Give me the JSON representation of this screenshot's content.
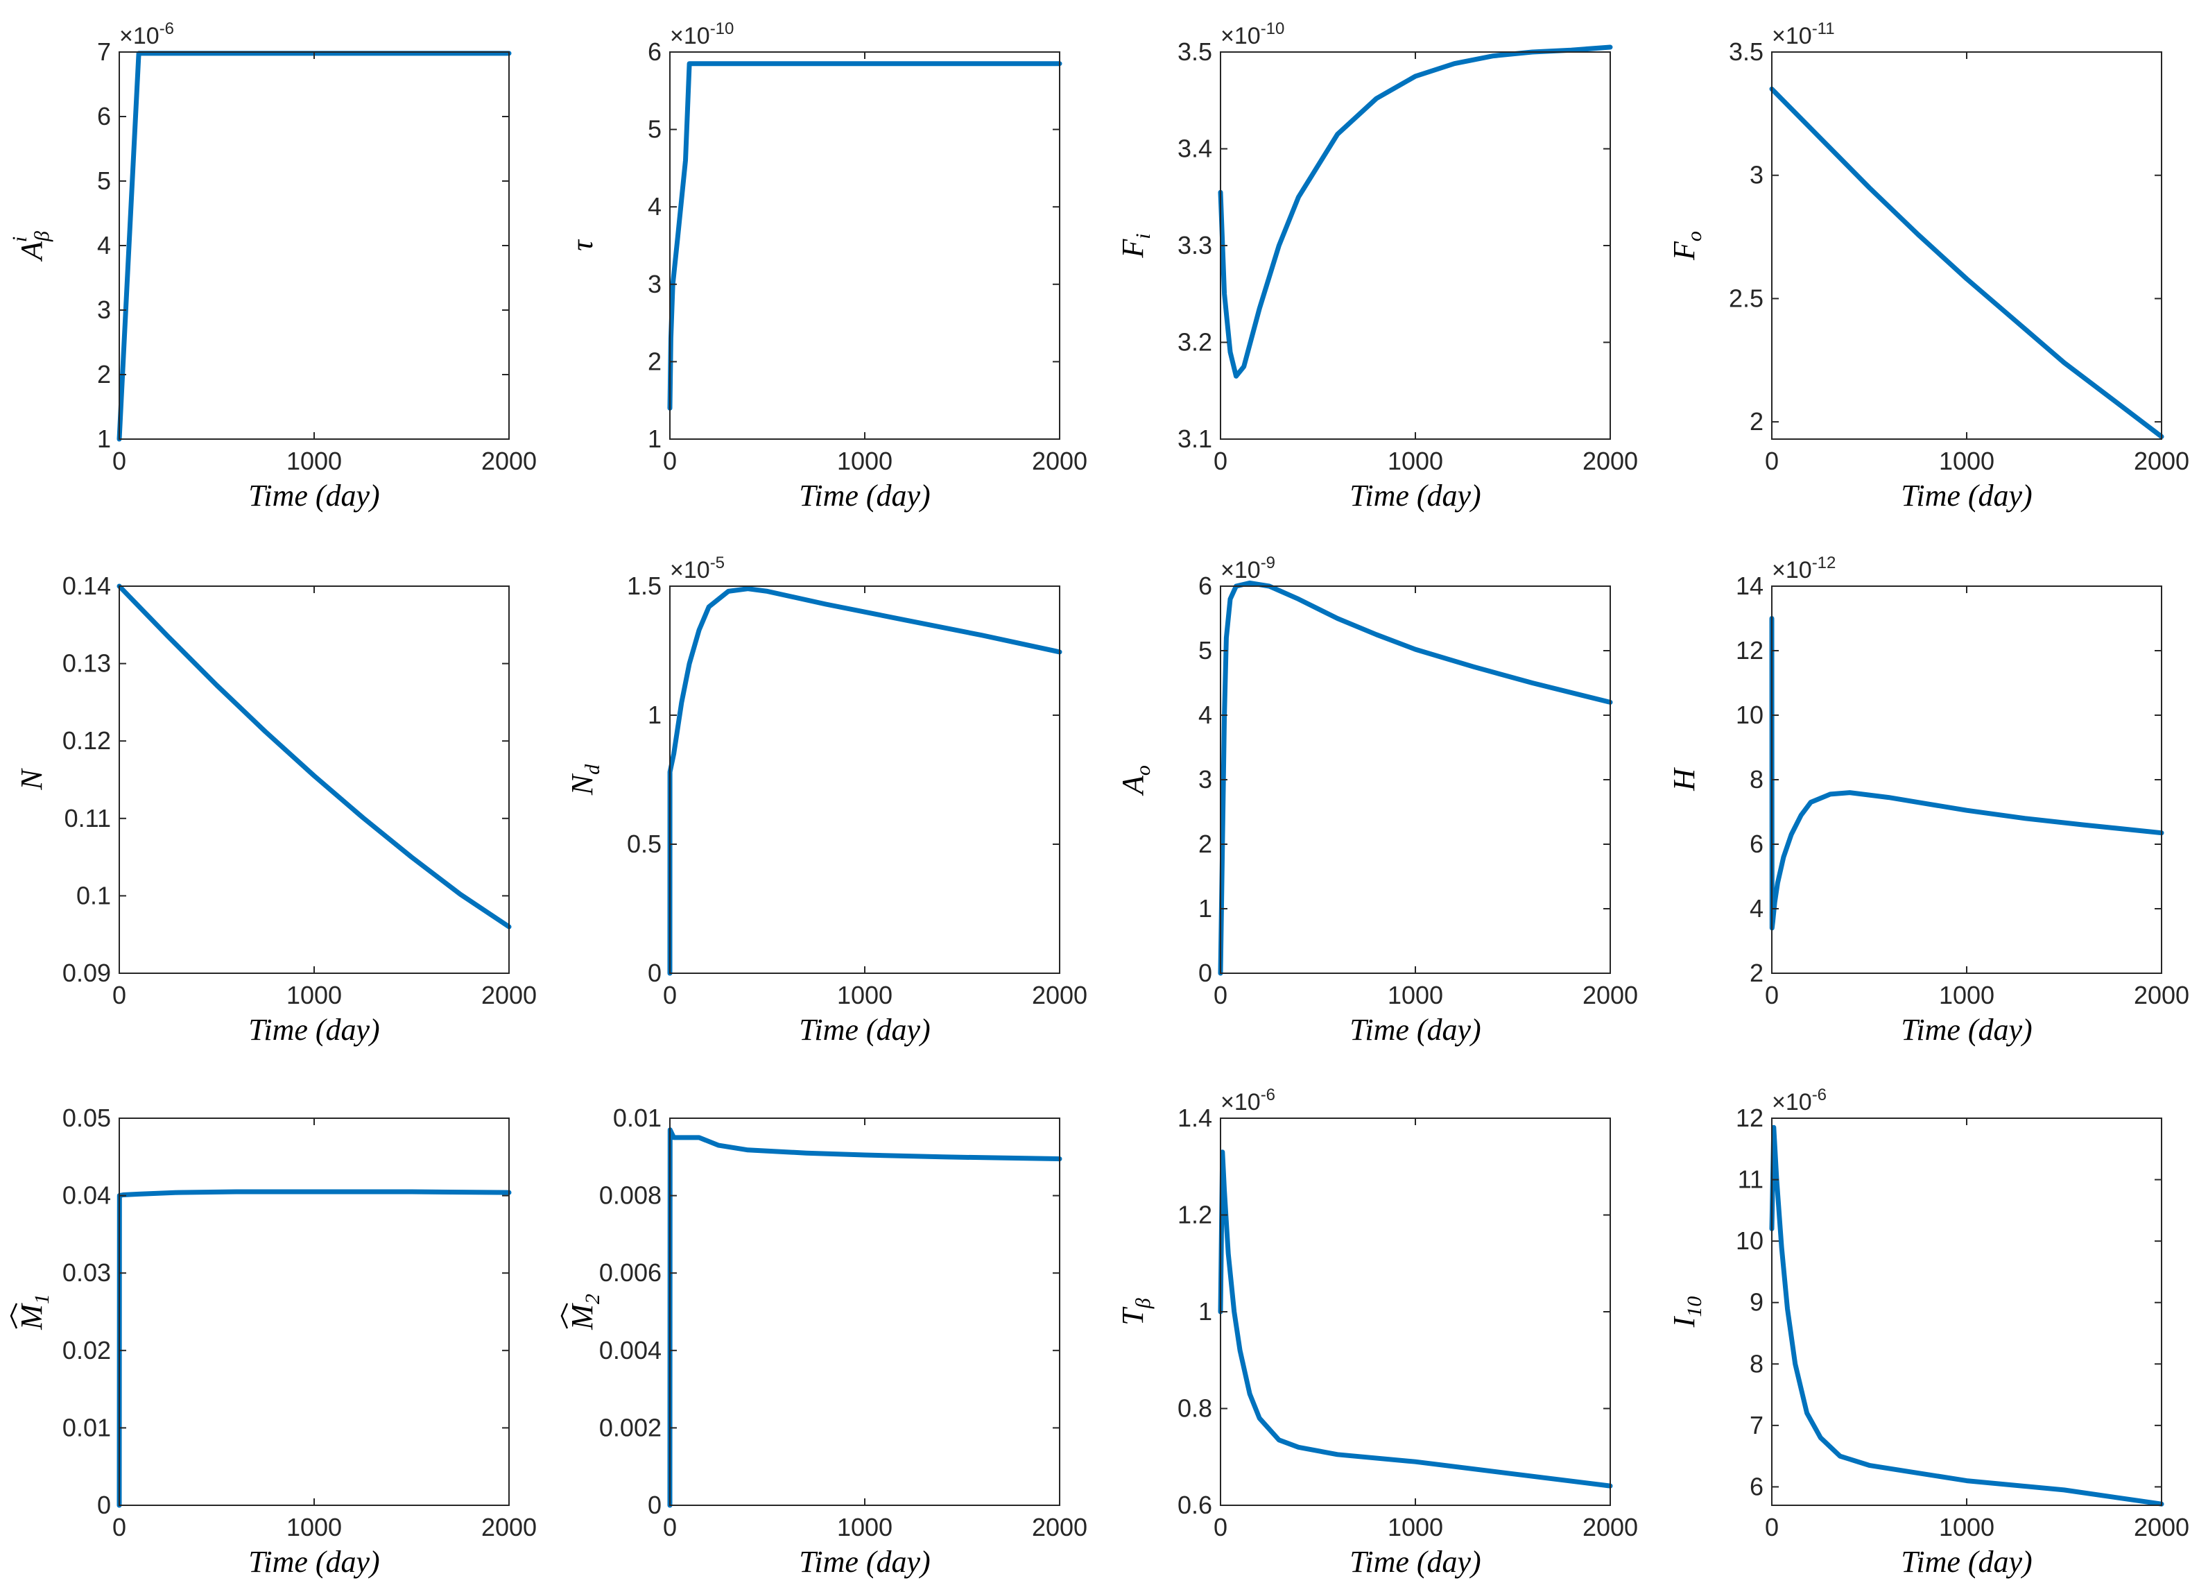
{
  "figure": {
    "line_color": "#0072BD",
    "axis_color": "#262626",
    "background": "#ffffff"
  },
  "chart_data": [
    {
      "type": "line",
      "xlabel": "Time (day)",
      "ylabel": {
        "main": "A",
        "sub": "β",
        "sup": "i"
      },
      "exponent": "-6",
      "xlim": [
        0,
        2000
      ],
      "ylim": [
        1,
        7
      ],
      "xticks": [
        0,
        1000,
        2000
      ],
      "yticks": [
        1,
        2,
        3,
        4,
        5,
        6,
        7
      ],
      "x": [
        0,
        40,
        100,
        2000
      ],
      "y": [
        1,
        3.4,
        6.98,
        6.98
      ]
    },
    {
      "type": "line",
      "xlabel": "Time (day)",
      "ylabel": {
        "main": "τ"
      },
      "exponent": "-10",
      "xlim": [
        0,
        2000
      ],
      "ylim": [
        1,
        6
      ],
      "xticks": [
        0,
        1000,
        2000
      ],
      "yticks": [
        1,
        2,
        3,
        4,
        5,
        6
      ],
      "x": [
        0,
        5,
        15,
        40,
        80,
        100,
        2000
      ],
      "y": [
        1.4,
        2.3,
        3.0,
        3.6,
        4.6,
        5.85,
        5.85
      ]
    },
    {
      "type": "line",
      "xlabel": "Time (day)",
      "ylabel": {
        "main": "F",
        "sub": "i"
      },
      "exponent": "-10",
      "xlim": [
        0,
        2000
      ],
      "ylim": [
        3.1,
        3.5
      ],
      "xticks": [
        0,
        1000,
        2000
      ],
      "yticks": [
        3.1,
        3.2,
        3.3,
        3.4,
        3.5
      ],
      "x": [
        0,
        20,
        50,
        80,
        120,
        200,
        300,
        400,
        600,
        800,
        1000,
        1200,
        1400,
        1600,
        1800,
        2000
      ],
      "y": [
        3.355,
        3.25,
        3.19,
        3.165,
        3.175,
        3.235,
        3.3,
        3.35,
        3.415,
        3.452,
        3.475,
        3.488,
        3.496,
        3.5,
        3.502,
        3.505
      ]
    },
    {
      "type": "line",
      "xlabel": "Time (day)",
      "ylabel": {
        "main": "F",
        "sub": "o"
      },
      "exponent": "-11",
      "xlim": [
        0,
        2000
      ],
      "ylim": [
        1.93,
        3.5
      ],
      "xticks": [
        0,
        1000,
        2000
      ],
      "yticks": [
        2,
        2.5,
        3,
        3.5
      ],
      "x": [
        0,
        250,
        500,
        750,
        1000,
        1250,
        1500,
        1750,
        2000
      ],
      "y": [
        3.35,
        3.15,
        2.95,
        2.76,
        2.58,
        2.41,
        2.24,
        2.09,
        1.94
      ]
    },
    {
      "type": "line",
      "xlabel": "Time (day)",
      "ylabel": {
        "main": "N"
      },
      "exponent": "",
      "xlim": [
        0,
        2000
      ],
      "ylim": [
        0.09,
        0.14
      ],
      "xticks": [
        0,
        1000,
        2000
      ],
      "yticks": [
        0.09,
        0.1,
        0.11,
        0.12,
        0.13,
        0.14
      ],
      "ytick_labels": [
        "0.09",
        "0.1",
        "0.11",
        "0.12",
        "0.13",
        "0.14"
      ],
      "x": [
        0,
        250,
        500,
        750,
        1000,
        1250,
        1500,
        1750,
        2000
      ],
      "y": [
        0.14,
        0.1335,
        0.1272,
        0.1212,
        0.1155,
        0.1101,
        0.105,
        0.1002,
        0.096
      ]
    },
    {
      "type": "line",
      "xlabel": "Time (day)",
      "ylabel": {
        "main": "N",
        "sub": "d"
      },
      "exponent": "-5",
      "xlim": [
        0,
        2000
      ],
      "ylim": [
        0,
        1.5
      ],
      "xticks": [
        0,
        1000,
        2000
      ],
      "yticks": [
        0,
        0.5,
        1,
        1.5
      ],
      "x": [
        0,
        0.5,
        20,
        60,
        100,
        150,
        200,
        300,
        400,
        500,
        800,
        1200,
        1600,
        2000
      ],
      "y": [
        0,
        0.78,
        0.85,
        1.05,
        1.2,
        1.33,
        1.42,
        1.48,
        1.49,
        1.48,
        1.43,
        1.37,
        1.31,
        1.245
      ]
    },
    {
      "type": "line",
      "xlabel": "Time (day)",
      "ylabel": {
        "main": "A",
        "sub": "o"
      },
      "exponent": "-9",
      "xlim": [
        0,
        2000
      ],
      "ylim": [
        0,
        6
      ],
      "xticks": [
        0,
        1000,
        2000
      ],
      "yticks": [
        0,
        1,
        2,
        3,
        4,
        5,
        6
      ],
      "x": [
        0,
        10,
        20,
        30,
        50,
        80,
        150,
        250,
        400,
        600,
        800,
        1000,
        1300,
        1600,
        2000
      ],
      "y": [
        0,
        2.0,
        4.0,
        5.2,
        5.8,
        6.0,
        6.05,
        6.0,
        5.8,
        5.5,
        5.25,
        5.02,
        4.75,
        4.5,
        4.2
      ]
    },
    {
      "type": "line",
      "xlabel": "Time (day)",
      "ylabel": {
        "main": "H"
      },
      "exponent": "-12",
      "xlim": [
        0,
        2000
      ],
      "ylim": [
        2,
        14
      ],
      "xticks": [
        0,
        1000,
        2000
      ],
      "yticks": [
        2,
        4,
        6,
        8,
        10,
        12,
        14
      ],
      "x": [
        0,
        1,
        5,
        15,
        30,
        60,
        100,
        150,
        200,
        300,
        400,
        600,
        800,
        1000,
        1300,
        1600,
        2000
      ],
      "y": [
        13,
        3.4,
        3.6,
        4.2,
        4.8,
        5.6,
        6.3,
        6.9,
        7.3,
        7.55,
        7.6,
        7.45,
        7.25,
        7.05,
        6.8,
        6.6,
        6.35
      ]
    },
    {
      "type": "line",
      "xlabel": "Time (day)",
      "ylabel": {
        "main": "M",
        "sub": "1",
        "hat": true
      },
      "exponent": "",
      "xlim": [
        0,
        2000
      ],
      "ylim": [
        0,
        0.05
      ],
      "xticks": [
        0,
        1000,
        2000
      ],
      "yticks": [
        0,
        0.01,
        0.02,
        0.03,
        0.04,
        0.05
      ],
      "ytick_labels": [
        "0",
        "0.01",
        "0.02",
        "0.03",
        "0.04",
        "0.05"
      ],
      "x": [
        0,
        1,
        20,
        100,
        300,
        600,
        1000,
        1500,
        2000
      ],
      "y": [
        0,
        0.04,
        0.0401,
        0.0402,
        0.0404,
        0.0405,
        0.0405,
        0.0405,
        0.0404
      ]
    },
    {
      "type": "line",
      "xlabel": "Time (day)",
      "ylabel": {
        "main": "M",
        "sub": "2",
        "hat": true
      },
      "exponent": "",
      "xlim": [
        0,
        2000
      ],
      "ylim": [
        0,
        0.01
      ],
      "xticks": [
        0,
        1000,
        2000
      ],
      "yticks": [
        0,
        0.002,
        0.004,
        0.006,
        0.008,
        0.01
      ],
      "ytick_labels": [
        "0",
        "0.002",
        "0.004",
        "0.006",
        "0.008",
        "0.01"
      ],
      "x": [
        0,
        1,
        20,
        80,
        150,
        250,
        400,
        700,
        1000,
        1400,
        2000
      ],
      "y": [
        0,
        0.0097,
        0.0095,
        0.0095,
        0.0095,
        0.0093,
        0.00918,
        0.0091,
        0.00905,
        0.009,
        0.00895
      ]
    },
    {
      "type": "line",
      "xlabel": "Time (day)",
      "ylabel": {
        "main": "T",
        "sub": "β"
      },
      "exponent": "-6",
      "xlim": [
        0,
        2000
      ],
      "ylim": [
        0.6,
        1.4
      ],
      "xticks": [
        0,
        1000,
        2000
      ],
      "yticks": [
        0.6,
        0.8,
        1,
        1.2,
        1.4
      ],
      "x": [
        0,
        10,
        20,
        40,
        70,
        100,
        150,
        200,
        300,
        400,
        600,
        1000,
        1500,
        2000
      ],
      "y": [
        1.0,
        1.33,
        1.25,
        1.12,
        1.0,
        0.92,
        0.83,
        0.78,
        0.735,
        0.72,
        0.705,
        0.69,
        0.665,
        0.64
      ]
    },
    {
      "type": "line",
      "xlabel": "Time (day)",
      "ylabel": {
        "main": "I",
        "sub": "10"
      },
      "exponent": "-6",
      "xlim": [
        0,
        2000
      ],
      "ylim": [
        5.7,
        12
      ],
      "xticks": [
        0,
        1000,
        2000
      ],
      "yticks": [
        6,
        7,
        8,
        9,
        10,
        11,
        12
      ],
      "x": [
        0,
        10,
        25,
        50,
        80,
        120,
        180,
        250,
        350,
        500,
        700,
        1000,
        1500,
        2000
      ],
      "y": [
        10.2,
        11.85,
        11.0,
        9.9,
        8.9,
        8.0,
        7.2,
        6.8,
        6.5,
        6.35,
        6.25,
        6.1,
        5.95,
        5.72
      ]
    }
  ]
}
